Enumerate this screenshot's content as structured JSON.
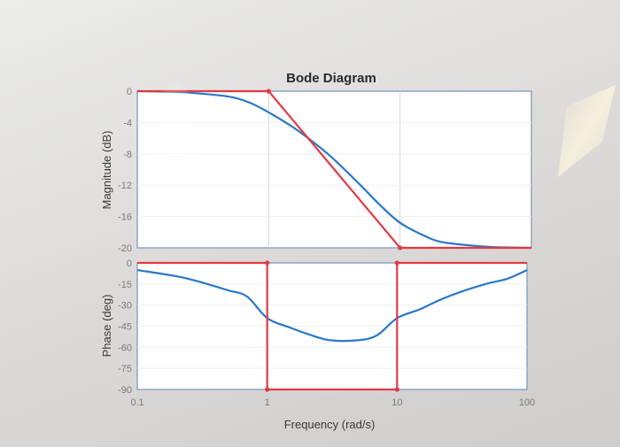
{
  "chart_data": [
    {
      "type": "line",
      "panel": "magnitude",
      "title": "Bode Diagram",
      "ylabel": "Magnitude (dB)",
      "xscale": "log",
      "xlim": [
        0.1,
        100
      ],
      "ylim": [
        -20,
        0
      ],
      "yticks": [
        0,
        -4,
        -8,
        -12,
        -16,
        -20
      ],
      "ytick_labels": [
        "0",
        "-4",
        "-8",
        "-12",
        "-16",
        "-20"
      ],
      "grid": true,
      "series": [
        {
          "color": "#2a78c8",
          "style": "exact",
          "x": [
            0.1,
            0.2,
            0.3,
            0.5,
            0.7,
            1,
            1.5,
            2,
            3,
            5,
            7,
            10,
            15,
            20,
            30,
            50,
            70,
            100
          ],
          "y": [
            0,
            -0.1,
            -0.3,
            -0.7,
            -1.4,
            -2.7,
            -4.5,
            -6.0,
            -8.4,
            -12.0,
            -14.5,
            -16.8,
            -18.4,
            -19.2,
            -19.6,
            -19.9,
            -19.95,
            -20
          ]
        },
        {
          "color": "#e23a45",
          "style": "asymptote",
          "x": [
            0.1,
            1,
            10,
            100
          ],
          "y": [
            0,
            0,
            -20,
            -20
          ]
        }
      ]
    },
    {
      "type": "line",
      "panel": "phase",
      "ylabel": "Phase (deg)",
      "xlabel": "Frequency  (rad/s)",
      "xscale": "log",
      "xlim": [
        0.1,
        100
      ],
      "ylim": [
        -90,
        0
      ],
      "yticks": [
        0,
        -15,
        -30,
        -45,
        -60,
        -75,
        -90
      ],
      "ytick_labels": [
        "0",
        "-15",
        "-30",
        "-45",
        "-60",
        "-75",
        "-90"
      ],
      "xticks": [
        0.1,
        1,
        10,
        100
      ],
      "xtick_labels": [
        "0.1",
        "1",
        "10",
        "100"
      ],
      "grid": true,
      "series": [
        {
          "color": "#2a78c8",
          "style": "exact",
          "x": [
            0.1,
            0.2,
            0.3,
            0.5,
            0.7,
            1,
            1.5,
            2,
            3,
            5,
            7,
            10,
            15,
            20,
            30,
            50,
            70,
            100
          ],
          "y": [
            -5.1,
            -9.5,
            -13.4,
            -19.5,
            -23.9,
            -39.3,
            -46.0,
            -50.2,
            -54.9,
            -55.0,
            -51.5,
            -39.3,
            -33.0,
            -27.5,
            -21.0,
            -14.6,
            -11.4,
            -5.1
          ]
        },
        {
          "color": "#e23a45",
          "style": "asymptote",
          "x": [
            0.1,
            1,
            1,
            10,
            10,
            100
          ],
          "y": [
            0,
            0,
            -90,
            -90,
            0,
            0
          ]
        }
      ]
    }
  ]
}
